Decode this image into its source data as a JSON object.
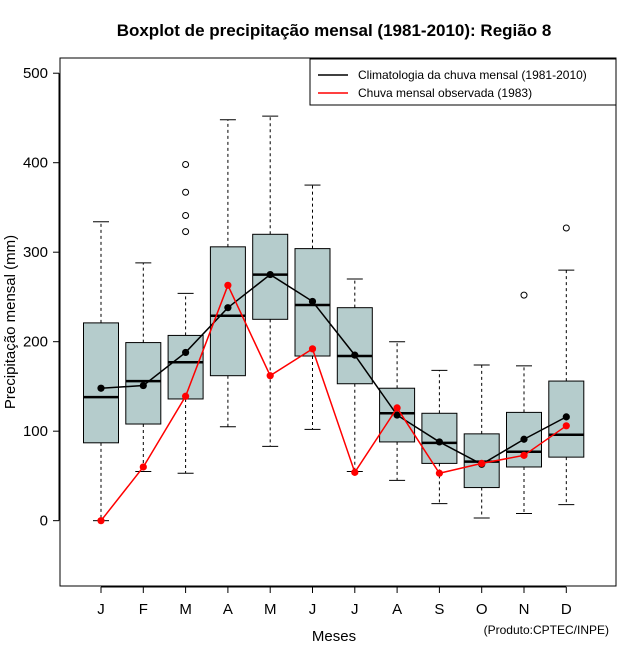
{
  "chart_data": {
    "type": "boxplot",
    "title": "Boxplot de precipitação mensal (1981-2010): Região 8",
    "xlabel": "Meses",
    "ylabel": "Precipitação mensal (mm)",
    "ylim": [
      -73,
      517
    ],
    "yticks": [
      0,
      100,
      200,
      300,
      400,
      500
    ],
    "categories": [
      "J",
      "F",
      "M",
      "A",
      "M",
      "J",
      "J",
      "A",
      "S",
      "O",
      "N",
      "D"
    ],
    "boxes": [
      {
        "whisker_low": 0,
        "q1": 87,
        "median": 138,
        "q3": 221,
        "whisker_high": 334,
        "outliers": []
      },
      {
        "whisker_low": 55,
        "q1": 108,
        "median": 156,
        "q3": 199,
        "whisker_high": 288,
        "outliers": []
      },
      {
        "whisker_low": 53,
        "q1": 136,
        "median": 177,
        "q3": 207,
        "whisker_high": 254,
        "outliers": [
          398,
          367,
          341,
          323
        ]
      },
      {
        "whisker_low": 105,
        "q1": 162,
        "median": 229,
        "q3": 306,
        "whisker_high": 448,
        "outliers": []
      },
      {
        "whisker_low": 83,
        "q1": 225,
        "median": 275,
        "q3": 320,
        "whisker_high": 452,
        "outliers": []
      },
      {
        "whisker_low": 102,
        "q1": 184,
        "median": 241,
        "q3": 304,
        "whisker_high": 375,
        "outliers": []
      },
      {
        "whisker_low": 55,
        "q1": 153,
        "median": 184,
        "q3": 238,
        "whisker_high": 270,
        "outliers": []
      },
      {
        "whisker_low": 45,
        "q1": 88,
        "median": 120,
        "q3": 148,
        "whisker_high": 200,
        "outliers": []
      },
      {
        "whisker_low": 19,
        "q1": 64,
        "median": 87,
        "q3": 120,
        "whisker_high": 168,
        "outliers": []
      },
      {
        "whisker_low": 3,
        "q1": 37,
        "median": 66,
        "q3": 97,
        "whisker_high": 174,
        "outliers": []
      },
      {
        "whisker_low": 8,
        "q1": 60,
        "median": 77,
        "q3": 121,
        "whisker_high": 173,
        "outliers": [
          252
        ]
      },
      {
        "whisker_low": 18,
        "q1": 71,
        "median": 96,
        "q3": 156,
        "whisker_high": 280,
        "outliers": [
          327
        ]
      }
    ],
    "series": [
      {
        "name": "Climatologia da chuva mensal (1981-2010)",
        "color": "#000000",
        "values": [
          148,
          151,
          188,
          238,
          275,
          245,
          185,
          118,
          88,
          63,
          91,
          116
        ]
      },
      {
        "name": "Chuva mensal observada (1983)",
        "color": "#ff0000",
        "values": [
          0,
          60,
          139,
          263,
          162,
          192,
          54,
          126,
          53,
          64,
          73,
          106
        ]
      }
    ],
    "legend_position": "top-right",
    "box_fill": "#b5cccc",
    "annotation": "(Produto:CPTEC/INPE)"
  }
}
